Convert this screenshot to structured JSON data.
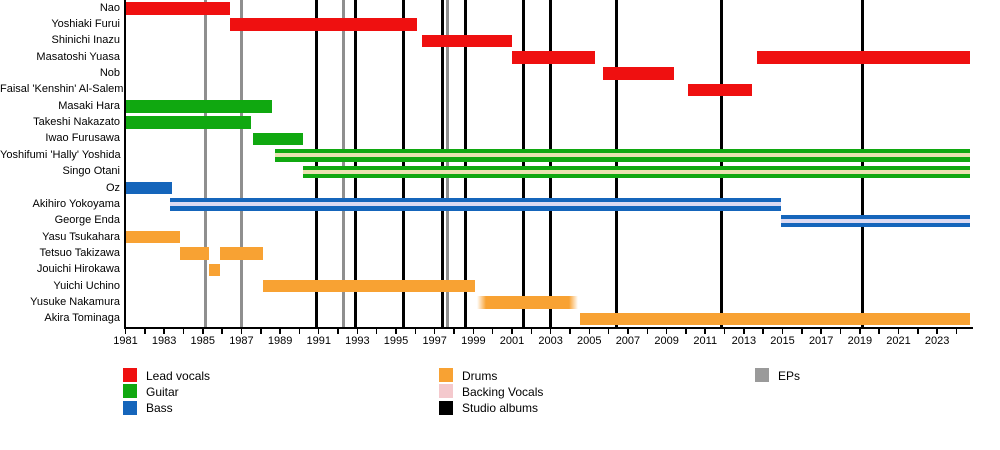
{
  "chart_data": {
    "type": "timeline",
    "description_of_visual": "band-member-gantt-timeline",
    "x_axis": {
      "start_year": 1981,
      "end_year": 2024.7,
      "tick_label_years": [
        1981,
        1983,
        1985,
        1987,
        1989,
        1991,
        1993,
        1995,
        1997,
        1999,
        2001,
        2003,
        2005,
        2007,
        2009,
        2011,
        2013,
        2015,
        2017,
        2019,
        2021,
        2023
      ],
      "minor_tick_step": 1
    },
    "roles": {
      "lead_vocals": {
        "label": "Lead vocals",
        "color": "#ef1010"
      },
      "guitar": {
        "label": "Guitar",
        "color": "#10a810"
      },
      "bass": {
        "label": "Bass",
        "color": "#1565bb"
      },
      "drums": {
        "label": "Drums",
        "color": "#f8a233"
      },
      "backing_vocals": {
        "label": "Backing Vocals",
        "color": "#f4c9cd"
      },
      "studio_albums": {
        "label": "Studio albums",
        "color": "#000000"
      },
      "eps": {
        "label": "EPs",
        "color": "#9a9a9a"
      }
    },
    "stripe_colors": {
      "on_guitar": "#e9e2b0",
      "on_bass": "#dcdaf2"
    },
    "members": [
      {
        "name": "Nao",
        "role": "lead_vocals",
        "backing_vocals": false,
        "fade_edges": false,
        "stints": [
          [
            1981.0,
            1986.4
          ]
        ]
      },
      {
        "name": "Yoshiaki Furui",
        "role": "lead_vocals",
        "backing_vocals": false,
        "fade_edges": false,
        "stints": [
          [
            1986.4,
            1996.1
          ]
        ]
      },
      {
        "name": "Shinichi Inazu",
        "role": "lead_vocals",
        "backing_vocals": false,
        "fade_edges": false,
        "stints": [
          [
            1996.35,
            2001.0
          ]
        ]
      },
      {
        "name": "Masatoshi Yuasa",
        "role": "lead_vocals",
        "backing_vocals": false,
        "fade_edges": false,
        "stints": [
          [
            2001.0,
            2005.3
          ],
          [
            2013.7,
            2024.7
          ]
        ]
      },
      {
        "name": "Nob",
        "role": "lead_vocals",
        "backing_vocals": false,
        "fade_edges": false,
        "stints": [
          [
            2005.7,
            2009.4
          ]
        ]
      },
      {
        "name": "Faisal 'Kenshin' Al-Salem",
        "role": "lead_vocals",
        "backing_vocals": false,
        "fade_edges": false,
        "stints": [
          [
            2010.1,
            2013.4
          ]
        ]
      },
      {
        "name": "Masaki Hara",
        "role": "guitar",
        "backing_vocals": false,
        "fade_edges": false,
        "stints": [
          [
            1981.0,
            1988.6
          ]
        ]
      },
      {
        "name": "Takeshi Nakazato",
        "role": "guitar",
        "backing_vocals": false,
        "fade_edges": false,
        "stints": [
          [
            1981.0,
            1987.5
          ]
        ]
      },
      {
        "name": "Iwao Furusawa",
        "role": "guitar",
        "backing_vocals": false,
        "fade_edges": false,
        "stints": [
          [
            1987.6,
            1990.2
          ]
        ]
      },
      {
        "name": "Yoshifumi 'Hally' Yoshida",
        "role": "guitar",
        "backing_vocals": true,
        "fade_edges": false,
        "stints": [
          [
            1988.75,
            2024.7
          ]
        ]
      },
      {
        "name": "Singo Otani",
        "role": "guitar",
        "backing_vocals": true,
        "fade_edges": false,
        "stints": [
          [
            1990.2,
            2024.7
          ]
        ]
      },
      {
        "name": "Oz",
        "role": "bass",
        "backing_vocals": false,
        "fade_edges": false,
        "stints": [
          [
            1981.0,
            1983.4
          ]
        ]
      },
      {
        "name": "Akihiro Yokoyama",
        "role": "bass",
        "backing_vocals": true,
        "fade_edges": false,
        "stints": [
          [
            1983.3,
            2014.9
          ]
        ]
      },
      {
        "name": "George Enda",
        "role": "bass",
        "backing_vocals": true,
        "fade_edges": false,
        "stints": [
          [
            2014.9,
            2024.7
          ]
        ]
      },
      {
        "name": "Yasu Tsukahara",
        "role": "drums",
        "backing_vocals": false,
        "fade_edges": false,
        "stints": [
          [
            1981.0,
            1983.8
          ]
        ]
      },
      {
        "name": "Tetsuo Takizawa",
        "role": "drums",
        "backing_vocals": false,
        "fade_edges": false,
        "stints": [
          [
            1983.8,
            1985.3
          ],
          [
            1985.9,
            1988.1
          ]
        ]
      },
      {
        "name": "Jouichi Hirokawa",
        "role": "drums",
        "backing_vocals": false,
        "fade_edges": false,
        "stints": [
          [
            1985.3,
            1985.9
          ]
        ]
      },
      {
        "name": "Yuichi Uchino",
        "role": "drums",
        "backing_vocals": false,
        "fade_edges": false,
        "stints": [
          [
            1988.1,
            1999.1
          ]
        ]
      },
      {
        "name": "Yusuke Nakamura",
        "role": "drums",
        "backing_vocals": false,
        "fade_edges": true,
        "stints": [
          [
            1999.2,
            2004.4
          ]
        ]
      },
      {
        "name": "Akira Tominaga",
        "role": "drums",
        "backing_vocals": false,
        "fade_edges": false,
        "stints": [
          [
            2004.5,
            2024.7
          ]
        ]
      }
    ],
    "studio_album_years": [
      1990.9,
      1992.9,
      1995.4,
      1997.4,
      1998.6,
      2001.6,
      2003.0,
      2006.4,
      2011.85,
      2019.15
    ],
    "ep_years": [
      1985.15,
      1987.0,
      1992.3,
      1997.65
    ],
    "event_line_colors": {
      "studio_albums": "#000000",
      "eps": "#8f8f8f"
    },
    "legend": {
      "columns": [
        [
          "lead_vocals",
          "guitar",
          "bass"
        ],
        [
          "drums",
          "backing_vocals",
          "studio_albums"
        ],
        [
          "eps"
        ]
      ]
    }
  }
}
